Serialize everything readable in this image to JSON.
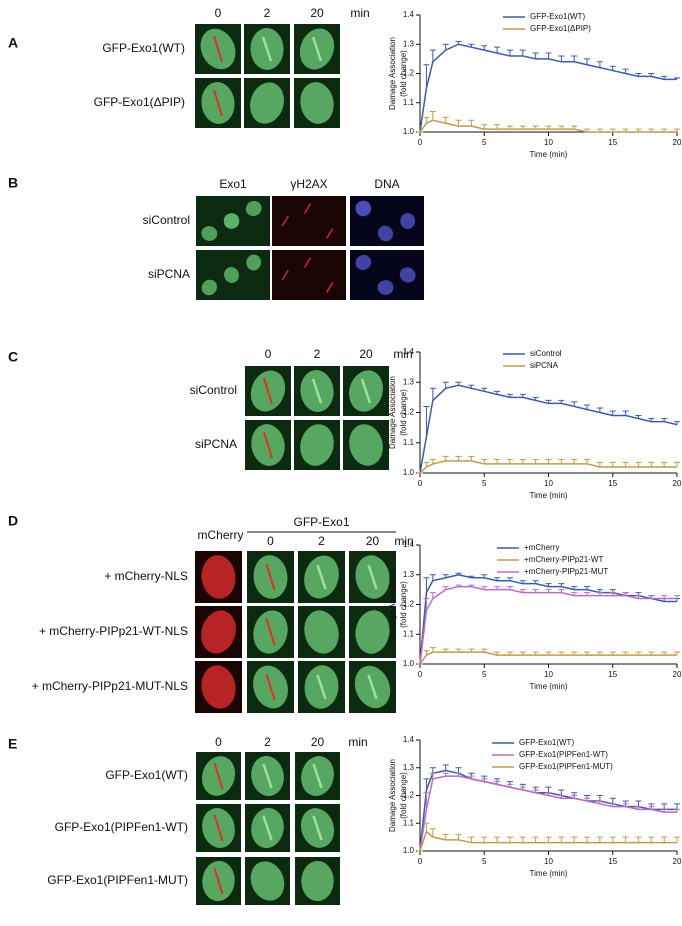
{
  "panels": [
    {
      "label": "A",
      "columns": [
        "0",
        "2",
        "20"
      ],
      "unit": "min",
      "rows": [
        "GFP-Exo1(WT)",
        "GFP-Exo1(ΔPIP)"
      ]
    },
    {
      "label": "B",
      "columns": [
        "Exo1",
        "γH2AX",
        "DNA"
      ],
      "rows": [
        "siControl",
        "siPCNA"
      ]
    },
    {
      "label": "C",
      "columns": [
        "0",
        "2",
        "20"
      ],
      "unit": "min",
      "rows": [
        "siControl",
        "siPCNA"
      ]
    },
    {
      "label": "D",
      "channel": "mCherry",
      "group": "GFP-Exo1",
      "columns": [
        "0",
        "2",
        "20"
      ],
      "unit": "min",
      "rows": [
        "+ mCherry-NLS",
        "+ mCherry-PIPp21-WT-NLS",
        "+ mCherry-PIPp21-MUT-NLS"
      ]
    },
    {
      "label": "E",
      "columns": [
        "0",
        "2",
        "20"
      ],
      "unit": "min",
      "rows": [
        "GFP-Exo1(WT)",
        "GFP-Exo1(PIPFen1-WT)",
        "GFP-Exo1(PIPFen1-MUT)"
      ]
    }
  ],
  "chart_data": [
    {
      "type": "line",
      "x_label": "Time (min)",
      "y_label": [
        "Damage Association",
        "(fold change)"
      ],
      "x": [
        0,
        0.5,
        1,
        2,
        3,
        4,
        5,
        6,
        7,
        8,
        9,
        10,
        11,
        12,
        13,
        14,
        15,
        16,
        17,
        18,
        19,
        20
      ],
      "xlim": [
        0,
        20
      ],
      "xticks": [
        0,
        5,
        10,
        15,
        20
      ],
      "ylim": [
        1.0,
        1.4
      ],
      "yticks": [
        {
          "value": 1.0,
          "label": "1.0"
        },
        1.1,
        1.2,
        1.3,
        1.4
      ],
      "series": [
        {
          "name": "GFP-Exo1(WT)",
          "color": "#3b5ca8",
          "values": [
            1.0,
            1.15,
            1.24,
            1.28,
            1.3,
            1.29,
            1.28,
            1.27,
            1.26,
            1.26,
            1.25,
            1.25,
            1.24,
            1.24,
            1.23,
            1.22,
            1.21,
            1.2,
            1.19,
            1.19,
            1.18,
            1.18
          ],
          "errors": [
            0,
            0.08,
            0.04,
            0.02,
            0.01,
            0.01,
            0.015,
            0.02,
            0.02,
            0.02,
            0.02,
            0.02,
            0.02,
            0.02,
            0.02,
            0.02,
            0.015,
            0.015,
            0.01,
            0.01,
            0.01,
            0.005
          ]
        },
        {
          "name": "GFP-Exo1(ΔPIP)",
          "color": "#c29a4c",
          "values": [
            1.0,
            1.03,
            1.04,
            1.03,
            1.02,
            1.02,
            1.01,
            1.01,
            1.01,
            1.01,
            1.01,
            1.01,
            1.01,
            1.01,
            1.0,
            1.0,
            1.0,
            1.0,
            1.0,
            1.0,
            1.0,
            1.0
          ],
          "errors": [
            0,
            0.02,
            0.03,
            0.02,
            0.02,
            0.02,
            0.015,
            0.015,
            0.01,
            0.01,
            0.01,
            0.01,
            0.01,
            0.01,
            0.01,
            0.01,
            0.01,
            0.01,
            0.01,
            0.01,
            0.01,
            0.01
          ]
        }
      ]
    },
    {
      "type": "line",
      "x_label": "Time (min)",
      "y_label": [
        "Damage Association",
        "(fold change)"
      ],
      "x": [
        0,
        0.5,
        1,
        2,
        3,
        4,
        5,
        6,
        7,
        8,
        9,
        10,
        11,
        12,
        13,
        14,
        15,
        16,
        17,
        18,
        19,
        20
      ],
      "xlim": [
        0,
        20
      ],
      "xticks": [
        0,
        5,
        10,
        15,
        20
      ],
      "ylim": [
        1.0,
        1.4
      ],
      "yticks": [
        {
          "value": 1.0,
          "label": "1.0"
        },
        1.1,
        1.2,
        1.3,
        1.4
      ],
      "series": [
        {
          "name": "siControl",
          "color": "#3b5ca8",
          "values": [
            1.0,
            1.12,
            1.24,
            1.28,
            1.29,
            1.28,
            1.27,
            1.26,
            1.25,
            1.25,
            1.24,
            1.23,
            1.23,
            1.22,
            1.21,
            1.2,
            1.19,
            1.19,
            1.18,
            1.17,
            1.17,
            1.16
          ],
          "errors": [
            0,
            0.1,
            0.04,
            0.02,
            0.01,
            0.01,
            0.01,
            0.01,
            0.01,
            0.01,
            0.01,
            0.01,
            0.01,
            0.015,
            0.015,
            0.015,
            0.015,
            0.015,
            0.01,
            0.01,
            0.01,
            0.01
          ]
        },
        {
          "name": "siPCNA",
          "color": "#c29a4c",
          "values": [
            1.0,
            1.02,
            1.03,
            1.04,
            1.04,
            1.04,
            1.03,
            1.03,
            1.03,
            1.03,
            1.03,
            1.03,
            1.03,
            1.03,
            1.03,
            1.02,
            1.02,
            1.02,
            1.02,
            1.02,
            1.02,
            1.02
          ],
          "errors": [
            0,
            0.015,
            0.015,
            0.015,
            0.015,
            0.015,
            0.015,
            0.015,
            0.015,
            0.015,
            0.015,
            0.015,
            0.015,
            0.015,
            0.015,
            0.015,
            0.015,
            0.015,
            0.015,
            0.015,
            0.015,
            0.015
          ]
        }
      ]
    },
    {
      "type": "line",
      "x_label": "Time (min)",
      "y_label": [
        "Damage Association",
        "(fold change)"
      ],
      "x": [
        0,
        0.5,
        1,
        2,
        3,
        4,
        5,
        6,
        7,
        8,
        9,
        10,
        11,
        12,
        13,
        14,
        15,
        16,
        17,
        18,
        19,
        20
      ],
      "xlim": [
        0,
        20
      ],
      "xticks": [
        0,
        5,
        10,
        15,
        20
      ],
      "ylim": [
        1.0,
        1.4
      ],
      "yticks": [
        {
          "value": 1.0,
          "label": "1.0"
        },
        1.1,
        1.2,
        1.3,
        1.4
      ],
      "series": [
        {
          "name": "+mCherry",
          "color": "#3b5ca8",
          "values": [
            1.0,
            1.24,
            1.28,
            1.29,
            1.3,
            1.29,
            1.29,
            1.28,
            1.28,
            1.27,
            1.27,
            1.26,
            1.26,
            1.25,
            1.25,
            1.24,
            1.24,
            1.23,
            1.23,
            1.22,
            1.21,
            1.21
          ],
          "errors": [
            0,
            0.05,
            0.02,
            0.01,
            0.005,
            0.005,
            0.01,
            0.01,
            0.01,
            0.01,
            0.01,
            0.01,
            0.01,
            0.01,
            0.01,
            0.01,
            0.01,
            0.01,
            0.01,
            0.01,
            0.01,
            0.01
          ]
        },
        {
          "name": "+mCherry-PIPp21-WT",
          "color": "#c29a4c",
          "values": [
            1.0,
            1.03,
            1.04,
            1.04,
            1.04,
            1.04,
            1.04,
            1.03,
            1.03,
            1.03,
            1.03,
            1.03,
            1.03,
            1.03,
            1.03,
            1.03,
            1.03,
            1.03,
            1.03,
            1.03,
            1.03,
            1.03
          ],
          "errors": [
            0,
            0.015,
            0.015,
            0.01,
            0.01,
            0.01,
            0.01,
            0.01,
            0.01,
            0.01,
            0.01,
            0.01,
            0.01,
            0.01,
            0.01,
            0.01,
            0.01,
            0.01,
            0.01,
            0.01,
            0.01,
            0.01
          ]
        },
        {
          "name": "+mCherry-PIPp21-MUT",
          "color": "#b96cc0",
          "values": [
            1.0,
            1.18,
            1.22,
            1.25,
            1.26,
            1.26,
            1.25,
            1.25,
            1.25,
            1.24,
            1.24,
            1.24,
            1.24,
            1.23,
            1.23,
            1.23,
            1.23,
            1.23,
            1.22,
            1.22,
            1.22,
            1.22
          ],
          "errors": [
            0,
            0.04,
            0.02,
            0.01,
            0.005,
            0.005,
            0.01,
            0.01,
            0.01,
            0.01,
            0.01,
            0.01,
            0.01,
            0.01,
            0.01,
            0.01,
            0.01,
            0.01,
            0.01,
            0.01,
            0.01,
            0.01
          ]
        }
      ]
    },
    {
      "type": "line",
      "x_label": "Time (min)",
      "y_label": [
        "Damage Association",
        "(fold change)"
      ],
      "x": [
        0,
        0.5,
        1,
        2,
        3,
        4,
        5,
        6,
        7,
        8,
        9,
        10,
        11,
        12,
        13,
        14,
        15,
        16,
        17,
        18,
        19,
        20
      ],
      "xlim": [
        0,
        20
      ],
      "xticks": [
        0,
        5,
        10,
        15,
        20
      ],
      "ylim": [
        1.0,
        1.4
      ],
      "yticks": [
        {
          "value": 1.0,
          "label": "1.0"
        },
        1.1,
        1.2,
        1.3,
        1.4
      ],
      "series": [
        {
          "name": "GFP-Exo1(WT)",
          "color": "#3b5ca8",
          "values": [
            1.0,
            1.22,
            1.28,
            1.29,
            1.28,
            1.26,
            1.25,
            1.24,
            1.23,
            1.22,
            1.21,
            1.21,
            1.2,
            1.19,
            1.18,
            1.18,
            1.17,
            1.16,
            1.16,
            1.15,
            1.15,
            1.15
          ],
          "errors": [
            0,
            0.04,
            0.02,
            0.02,
            0.02,
            0.02,
            0.02,
            0.02,
            0.02,
            0.02,
            0.02,
            0.02,
            0.02,
            0.02,
            0.02,
            0.02,
            0.02,
            0.02,
            0.02,
            0.02,
            0.02,
            0.02
          ]
        },
        {
          "name": "GFP-Exo1(PIPFen1-WT)",
          "color": "#b96cc0",
          "values": [
            1.0,
            1.15,
            1.26,
            1.27,
            1.27,
            1.26,
            1.25,
            1.24,
            1.23,
            1.22,
            1.21,
            1.2,
            1.19,
            1.19,
            1.18,
            1.17,
            1.16,
            1.16,
            1.15,
            1.15,
            1.14,
            1.14
          ],
          "errors": [
            0,
            0.06,
            0.02,
            0.01,
            0.01,
            0.01,
            0.01,
            0.01,
            0.01,
            0.01,
            0.01,
            0.01,
            0.01,
            0.01,
            0.01,
            0.01,
            0.01,
            0.01,
            0.01,
            0.01,
            0.01,
            0.01
          ]
        },
        {
          "name": "GFP-Exo1(PIPFen1-MUT)",
          "color": "#c29a4c",
          "values": [
            1.0,
            1.07,
            1.05,
            1.04,
            1.04,
            1.03,
            1.03,
            1.03,
            1.03,
            1.03,
            1.03,
            1.03,
            1.03,
            1.03,
            1.03,
            1.03,
            1.03,
            1.03,
            1.03,
            1.03,
            1.03,
            1.03
          ],
          "errors": [
            0,
            0.03,
            0.03,
            0.02,
            0.02,
            0.02,
            0.02,
            0.02,
            0.02,
            0.02,
            0.02,
            0.02,
            0.02,
            0.02,
            0.02,
            0.02,
            0.02,
            0.02,
            0.02,
            0.02,
            0.02,
            0.02
          ]
        }
      ]
    }
  ]
}
